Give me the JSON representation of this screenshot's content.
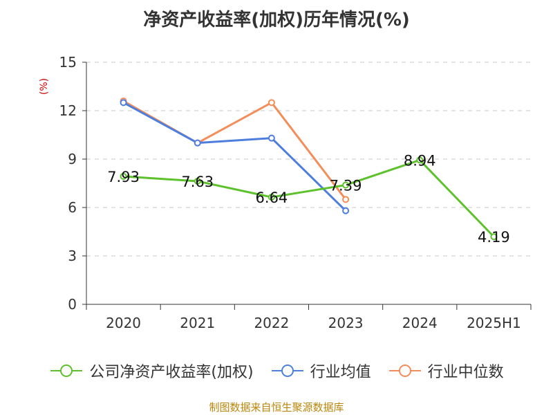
{
  "chart_data": {
    "type": "line",
    "title": "净资产收益率(加权)历年情况(%)",
    "ylabel": "(%)",
    "categories": [
      "2020",
      "2021",
      "2022",
      "2023",
      "2024",
      "2025H1"
    ],
    "ylim": [
      0,
      15
    ],
    "yticks": [
      0,
      3,
      6,
      9,
      12,
      15
    ],
    "grid": true,
    "legend_position": "bottom",
    "series": [
      {
        "name": "公司净资产收益率(加权)",
        "color": "#5cc12a",
        "values": [
          7.93,
          7.63,
          6.64,
          7.39,
          8.94,
          4.19
        ],
        "labels": [
          "7.93",
          "7.63",
          "6.64",
          "7.39",
          "8.94",
          "4.19"
        ]
      },
      {
        "name": "行业均值",
        "color": "#4d7ede",
        "values": [
          12.5,
          10.0,
          10.3,
          5.8,
          null,
          null
        ]
      },
      {
        "name": "行业中位数",
        "color": "#f48d5a",
        "values": [
          12.6,
          10.0,
          12.5,
          6.5,
          null,
          null
        ]
      }
    ]
  },
  "source_text": "制图数据来自恒生聚源数据库"
}
